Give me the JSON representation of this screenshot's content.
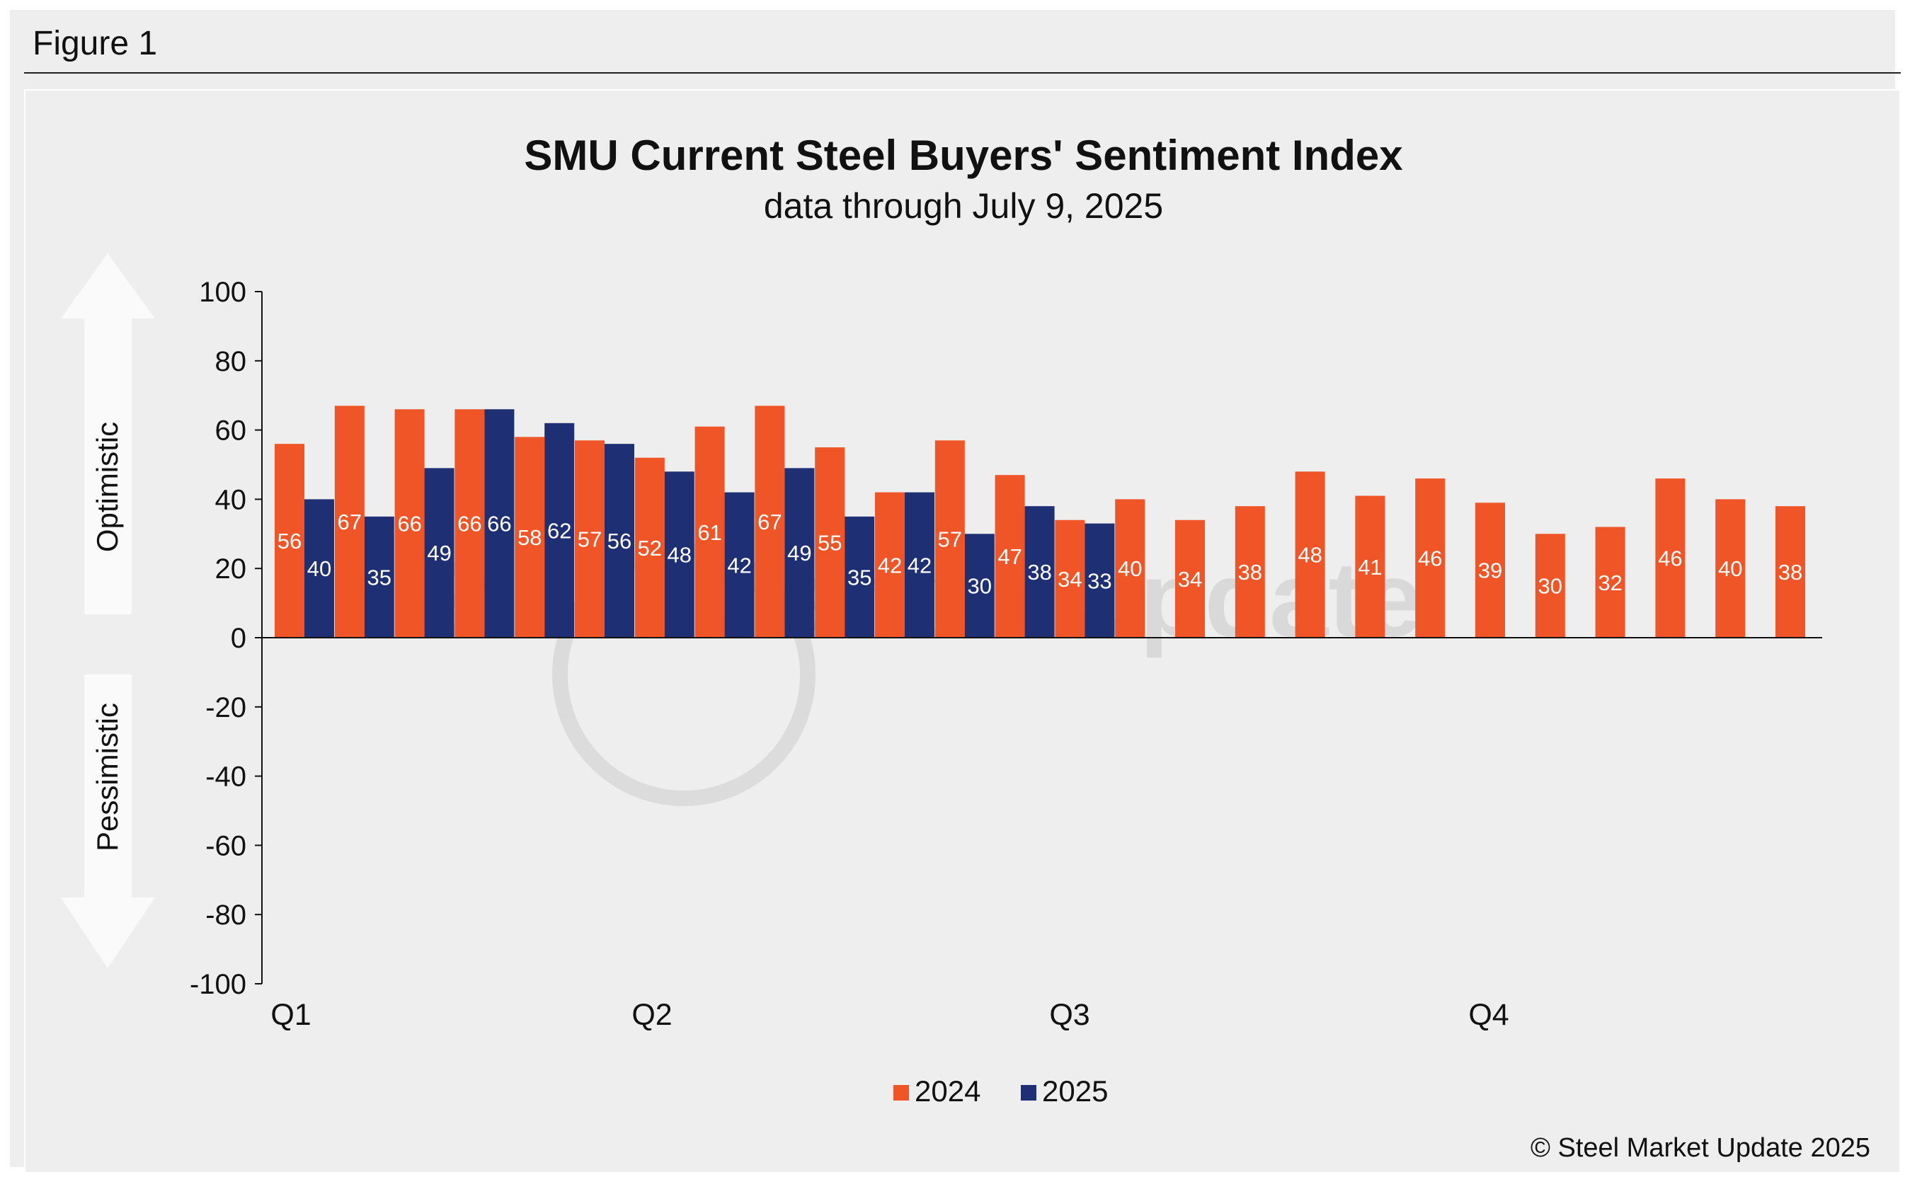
{
  "figure_label": "Figure 1",
  "credit": "© Steel Market Update 2025",
  "arrows": {
    "up": "Optimistic",
    "down": "Pessimistic"
  },
  "colors": {
    "s2024": "#ef5527",
    "s2025": "#1f2f73",
    "background": "#eeeeee"
  },
  "chart_data": {
    "type": "bar",
    "title": "SMU Current Steel Buyers' Sentiment Index",
    "subtitle": "data through July 9, 2025",
    "xlabel": "",
    "ylabel": "",
    "ylim": [
      -100,
      100
    ],
    "yticks": [
      100,
      80,
      60,
      40,
      20,
      0,
      -20,
      -40,
      -60,
      -80,
      -100
    ],
    "quarter_labels": [
      "Q1",
      "Q2",
      "Q3",
      "Q4"
    ],
    "legend_position": "bottom-center",
    "grid": false,
    "series": [
      {
        "name": "2024",
        "color": "#ef5527",
        "values": [
          56,
          67,
          66,
          66,
          58,
          57,
          52,
          61,
          67,
          55,
          42,
          57,
          47,
          34,
          40,
          34,
          38,
          48,
          41,
          46,
          39,
          30,
          32,
          46,
          40,
          38
        ]
      },
      {
        "name": "2025",
        "color": "#1f2f73",
        "values": [
          40,
          35,
          49,
          66,
          62,
          56,
          48,
          42,
          49,
          35,
          42,
          30,
          38,
          33
        ]
      }
    ]
  }
}
